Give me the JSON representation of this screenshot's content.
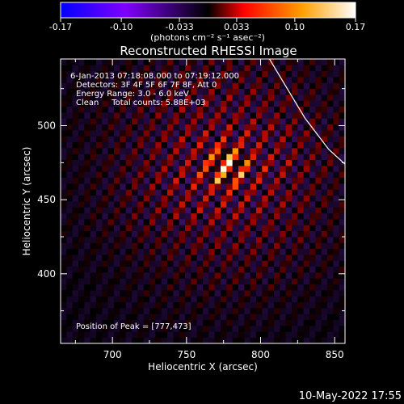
{
  "chart_data": {
    "type": "heatmap",
    "title": "Reconstructed RHESSI Image",
    "colorbar": {
      "min": -0.17,
      "max": 0.17,
      "ticks": [
        "-0.17",
        "-0.10",
        "-0.033",
        "0.033",
        "0.10",
        "0.17"
      ],
      "tick_values": [
        -0.17,
        -0.1,
        -0.033,
        0.033,
        0.1,
        0.17
      ],
      "unit_label": "(photons cm⁻² s⁻¹ asec⁻²)",
      "colors": [
        "#0000ff",
        "#8000ff",
        "#000000",
        "#ff0000",
        "#ffa000",
        "#ffffff"
      ]
    },
    "xlabel": "Heliocentric X (arcsec)",
    "ylabel": "Heliocentric Y (arcsec)",
    "xlim": [
      665,
      857
    ],
    "ylim": [
      353,
      545
    ],
    "xticks": [
      700,
      750,
      800,
      850
    ],
    "yticks": [
      400,
      450,
      500
    ],
    "annotations": [
      "6-Jan-2013 07:18:08.000 to 07:19:12.000",
      "Detectors: 3F 4F 5F 6F 7F 8F, Att 0",
      "Energy Range: 3.0 - 6.0 keV",
      "Clean     Total counts: 5.88E+03"
    ],
    "peak_label": "Position of Peak = [777,473]",
    "peak": [
      777,
      473
    ],
    "peak_value": 0.17,
    "limb_curve": [
      [
        806,
        545
      ],
      [
        818,
        525
      ],
      [
        830,
        505
      ],
      [
        846,
        484
      ],
      [
        857,
        474
      ]
    ],
    "fringe_angle_deg": 148,
    "fringe_period_arcsec": 11.5,
    "pixel_size_arcsec": 4
  },
  "footer": {
    "timestamp": "10-May-2022 17:55"
  }
}
